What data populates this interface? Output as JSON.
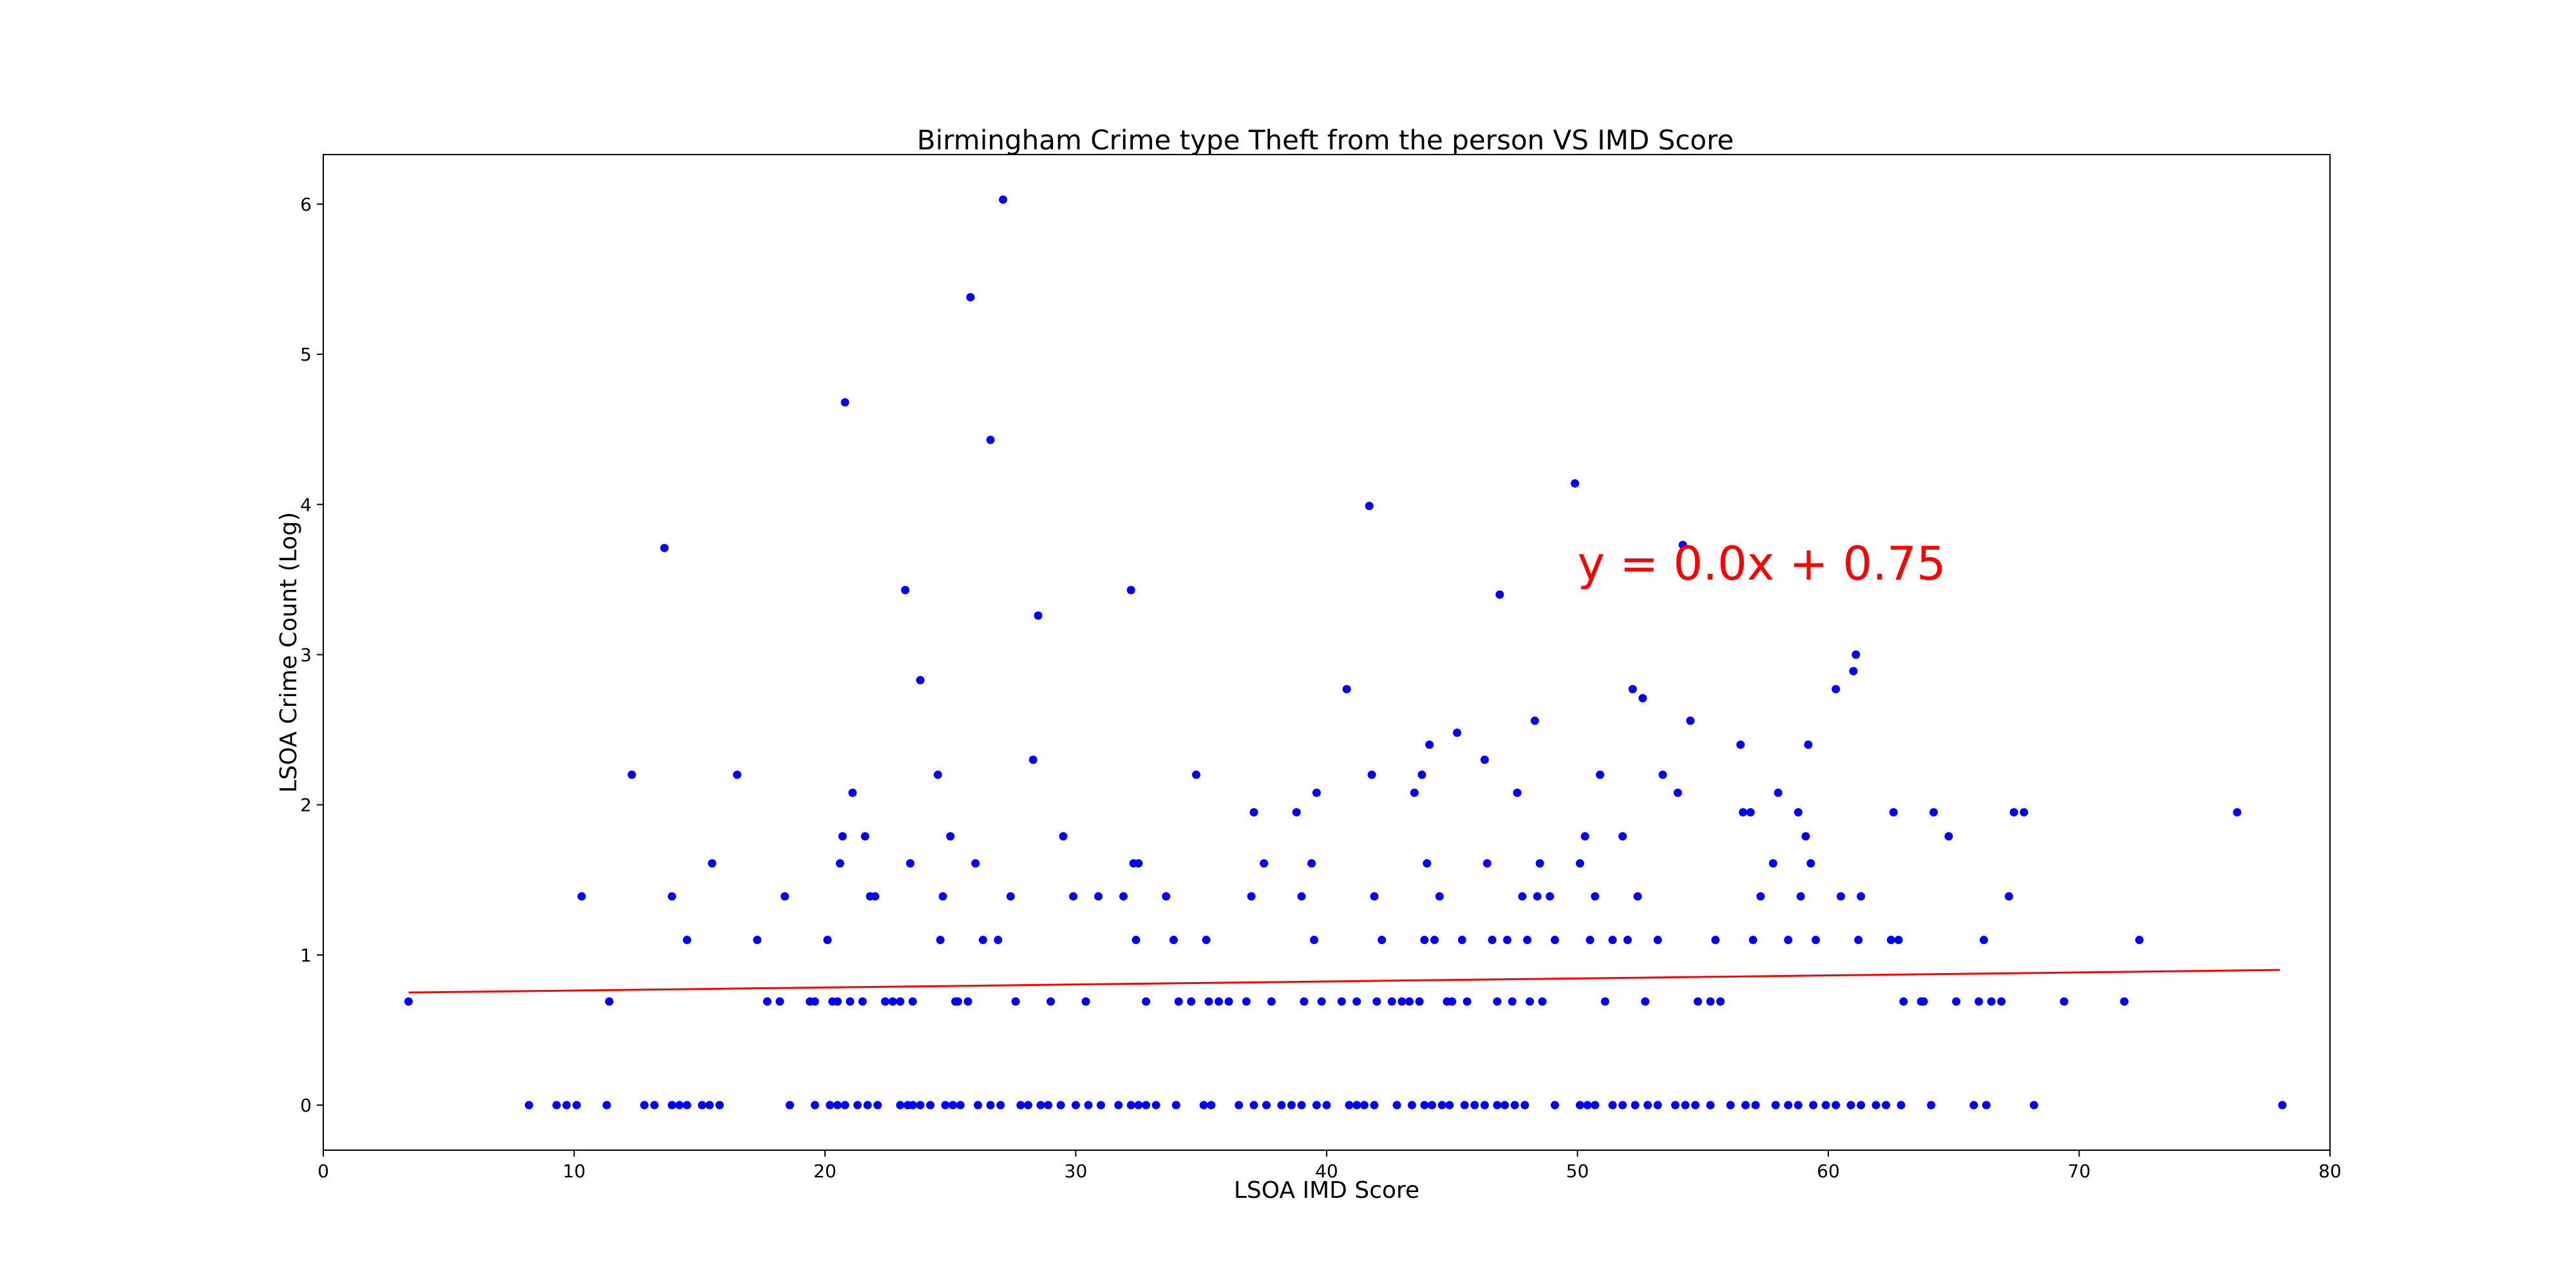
{
  "chart_data": {
    "type": "scatter",
    "title": "Birmingham Crime type Theft from the person VS IMD Score",
    "xlabel": "LSOA IMD Score",
    "ylabel": "LSOA Crime Count (Log)",
    "xlim": [
      0,
      80
    ],
    "ylim": [
      -0.3,
      6.33
    ],
    "xticks": [
      0,
      10,
      20,
      30,
      40,
      50,
      60,
      70,
      80
    ],
    "yticks": [
      0,
      1,
      2,
      3,
      4,
      5,
      6
    ],
    "grid": false,
    "legend": "none",
    "point_color": "#0000ff",
    "line_color": "#ff0000",
    "annotation": {
      "text": "y = 0.0x + 0.75",
      "x": 50,
      "y": 3.5,
      "color": "#ff0000"
    },
    "trendline": {
      "x": [
        3.4,
        78
      ],
      "y": [
        0.75,
        0.9
      ]
    },
    "points": [
      [
        3.4,
        0.69
      ],
      [
        10.3,
        1.39
      ],
      [
        11.4,
        0.69
      ],
      [
        12.3,
        2.2
      ],
      [
        13.6,
        3.71
      ],
      [
        13.9,
        1.39
      ],
      [
        14.5,
        1.1
      ],
      [
        15.5,
        1.61
      ],
      [
        16.5,
        2.2
      ],
      [
        17.3,
        1.1
      ],
      [
        17.7,
        0.69
      ],
      [
        18.2,
        0.69
      ],
      [
        18.4,
        1.39
      ],
      [
        19.4,
        0.69
      ],
      [
        19.6,
        0.69
      ],
      [
        20.1,
        1.1
      ],
      [
        20.3,
        0.69
      ],
      [
        20.5,
        0.69
      ],
      [
        20.6,
        1.61
      ],
      [
        20.7,
        1.79
      ],
      [
        20.8,
        4.68
      ],
      [
        21.0,
        0.69
      ],
      [
        21.1,
        2.08
      ],
      [
        21.5,
        0.69
      ],
      [
        21.6,
        1.79
      ],
      [
        21.8,
        1.39
      ],
      [
        22.0,
        1.39
      ],
      [
        22.4,
        0.69
      ],
      [
        22.7,
        0.69
      ],
      [
        23.0,
        0.69
      ],
      [
        23.2,
        3.43
      ],
      [
        23.4,
        1.61
      ],
      [
        23.5,
        0.69
      ],
      [
        23.8,
        2.83
      ],
      [
        24.5,
        2.2
      ],
      [
        24.6,
        1.1
      ],
      [
        24.7,
        1.39
      ],
      [
        25.0,
        1.79
      ],
      [
        25.2,
        0.69
      ],
      [
        25.3,
        0.69
      ],
      [
        25.7,
        0.69
      ],
      [
        25.8,
        5.38
      ],
      [
        26.0,
        1.61
      ],
      [
        26.3,
        1.1
      ],
      [
        26.6,
        4.43
      ],
      [
        26.9,
        1.1
      ],
      [
        27.1,
        6.03
      ],
      [
        27.4,
        1.39
      ],
      [
        27.6,
        0.69
      ],
      [
        28.3,
        2.3
      ],
      [
        28.5,
        3.26
      ],
      [
        29.0,
        0.69
      ],
      [
        29.5,
        1.79
      ],
      [
        29.9,
        1.39
      ],
      [
        30.4,
        0.69
      ],
      [
        30.9,
        1.39
      ],
      [
        31.9,
        1.39
      ],
      [
        32.2,
        3.43
      ],
      [
        32.3,
        1.61
      ],
      [
        32.4,
        1.1
      ],
      [
        32.5,
        1.61
      ],
      [
        32.8,
        0.69
      ],
      [
        33.6,
        1.39
      ],
      [
        33.9,
        1.1
      ],
      [
        34.1,
        0.69
      ],
      [
        34.6,
        0.69
      ],
      [
        34.8,
        2.2
      ],
      [
        35.2,
        1.1
      ],
      [
        35.3,
        0.69
      ],
      [
        35.7,
        0.69
      ],
      [
        36.1,
        0.69
      ],
      [
        36.8,
        0.69
      ],
      [
        37.0,
        1.39
      ],
      [
        37.1,
        1.95
      ],
      [
        37.5,
        1.61
      ],
      [
        37.8,
        0.69
      ],
      [
        38.8,
        1.95
      ],
      [
        39.0,
        1.39
      ],
      [
        39.1,
        0.69
      ],
      [
        39.4,
        1.61
      ],
      [
        39.5,
        1.1
      ],
      [
        39.6,
        2.08
      ],
      [
        39.8,
        0.69
      ],
      [
        40.6,
        0.69
      ],
      [
        40.8,
        2.77
      ],
      [
        41.2,
        0.69
      ],
      [
        41.7,
        3.99
      ],
      [
        41.8,
        2.2
      ],
      [
        41.9,
        1.39
      ],
      [
        42.0,
        0.69
      ],
      [
        42.2,
        1.1
      ],
      [
        42.6,
        0.69
      ],
      [
        43.0,
        0.69
      ],
      [
        43.3,
        0.69
      ],
      [
        43.5,
        2.08
      ],
      [
        43.7,
        0.69
      ],
      [
        43.8,
        2.2
      ],
      [
        43.9,
        1.1
      ],
      [
        44.0,
        1.61
      ],
      [
        44.1,
        2.4
      ],
      [
        44.3,
        1.1
      ],
      [
        44.5,
        1.39
      ],
      [
        44.8,
        0.69
      ],
      [
        45.0,
        0.69
      ],
      [
        45.2,
        2.48
      ],
      [
        45.4,
        1.1
      ],
      [
        45.6,
        0.69
      ],
      [
        46.3,
        2.3
      ],
      [
        46.4,
        1.61
      ],
      [
        46.6,
        1.1
      ],
      [
        46.8,
        0.69
      ],
      [
        46.9,
        3.4
      ],
      [
        47.2,
        1.1
      ],
      [
        47.4,
        0.69
      ],
      [
        47.6,
        2.08
      ],
      [
        47.8,
        1.39
      ],
      [
        48.0,
        1.1
      ],
      [
        48.1,
        0.69
      ],
      [
        48.3,
        2.56
      ],
      [
        48.4,
        1.39
      ],
      [
        48.5,
        1.61
      ],
      [
        48.6,
        0.69
      ],
      [
        48.9,
        1.39
      ],
      [
        49.1,
        1.1
      ],
      [
        49.9,
        4.14
      ],
      [
        50.1,
        1.61
      ],
      [
        50.3,
        1.79
      ],
      [
        50.5,
        1.1
      ],
      [
        50.7,
        1.39
      ],
      [
        50.9,
        2.2
      ],
      [
        51.1,
        0.69
      ],
      [
        51.4,
        1.1
      ],
      [
        51.8,
        1.79
      ],
      [
        52.0,
        1.1
      ],
      [
        52.2,
        2.77
      ],
      [
        52.4,
        1.39
      ],
      [
        52.6,
        2.71
      ],
      [
        52.7,
        0.69
      ],
      [
        53.2,
        1.1
      ],
      [
        53.4,
        2.2
      ],
      [
        54.0,
        2.08
      ],
      [
        54.2,
        3.73
      ],
      [
        54.5,
        2.56
      ],
      [
        54.8,
        0.69
      ],
      [
        55.3,
        0.69
      ],
      [
        55.5,
        1.1
      ],
      [
        55.7,
        0.69
      ],
      [
        56.5,
        2.4
      ],
      [
        56.6,
        1.95
      ],
      [
        56.9,
        1.95
      ],
      [
        57.0,
        1.1
      ],
      [
        57.3,
        1.39
      ],
      [
        57.8,
        1.61
      ],
      [
        58.0,
        2.08
      ],
      [
        58.4,
        1.1
      ],
      [
        58.8,
        1.95
      ],
      [
        58.9,
        1.39
      ],
      [
        59.1,
        1.79
      ],
      [
        59.3,
        1.61
      ],
      [
        59.5,
        1.1
      ],
      [
        59.2,
        2.4
      ],
      [
        60.3,
        2.77
      ],
      [
        60.5,
        1.39
      ],
      [
        61.0,
        2.89
      ],
      [
        61.1,
        3.0
      ],
      [
        61.2,
        1.1
      ],
      [
        61.3,
        1.39
      ],
      [
        62.5,
        1.1
      ],
      [
        62.8,
        1.1
      ],
      [
        62.6,
        1.95
      ],
      [
        63.7,
        0.69
      ],
      [
        63.8,
        0.69
      ],
      [
        64.2,
        1.95
      ],
      [
        64.8,
        1.79
      ],
      [
        65.1,
        0.69
      ],
      [
        66.2,
        1.1
      ],
      [
        66.5,
        0.69
      ],
      [
        66.9,
        0.69
      ],
      [
        67.2,
        1.39
      ],
      [
        67.4,
        1.95
      ],
      [
        67.8,
        1.95
      ],
      [
        69.4,
        0.69
      ],
      [
        71.8,
        0.69
      ],
      [
        72.4,
        1.1
      ],
      [
        76.3,
        1.95
      ],
      [
        66.0,
        0.69
      ],
      [
        63.0,
        0.69
      ],
      [
        8.2,
        0
      ],
      [
        9.3,
        0
      ],
      [
        9.7,
        0
      ],
      [
        10.1,
        0
      ],
      [
        11.3,
        0
      ],
      [
        12.8,
        0
      ],
      [
        13.2,
        0
      ],
      [
        13.9,
        0
      ],
      [
        14.2,
        0
      ],
      [
        14.5,
        0
      ],
      [
        15.1,
        0
      ],
      [
        15.4,
        0
      ],
      [
        15.8,
        0
      ],
      [
        18.6,
        0
      ],
      [
        19.6,
        0
      ],
      [
        20.2,
        0
      ],
      [
        20.5,
        0
      ],
      [
        20.8,
        0
      ],
      [
        21.3,
        0
      ],
      [
        21.7,
        0
      ],
      [
        22.1,
        0
      ],
      [
        23.0,
        0
      ],
      [
        23.3,
        0
      ],
      [
        23.5,
        0
      ],
      [
        23.8,
        0
      ],
      [
        24.2,
        0
      ],
      [
        24.8,
        0
      ],
      [
        25.1,
        0
      ],
      [
        25.4,
        0
      ],
      [
        26.1,
        0
      ],
      [
        26.6,
        0
      ],
      [
        27.0,
        0
      ],
      [
        27.8,
        0
      ],
      [
        28.1,
        0
      ],
      [
        28.6,
        0
      ],
      [
        28.9,
        0
      ],
      [
        29.4,
        0
      ],
      [
        30.0,
        0
      ],
      [
        30.5,
        0
      ],
      [
        31.0,
        0
      ],
      [
        31.7,
        0
      ],
      [
        32.2,
        0
      ],
      [
        32.5,
        0
      ],
      [
        32.8,
        0
      ],
      [
        33.2,
        0
      ],
      [
        34.0,
        0
      ],
      [
        35.1,
        0
      ],
      [
        35.4,
        0
      ],
      [
        36.5,
        0
      ],
      [
        37.1,
        0
      ],
      [
        37.6,
        0
      ],
      [
        38.2,
        0
      ],
      [
        38.6,
        0
      ],
      [
        39.0,
        0
      ],
      [
        39.6,
        0
      ],
      [
        40.0,
        0
      ],
      [
        40.9,
        0
      ],
      [
        41.2,
        0
      ],
      [
        41.5,
        0
      ],
      [
        41.9,
        0
      ],
      [
        42.8,
        0
      ],
      [
        43.4,
        0
      ],
      [
        43.9,
        0
      ],
      [
        44.2,
        0
      ],
      [
        44.6,
        0
      ],
      [
        44.9,
        0
      ],
      [
        45.5,
        0
      ],
      [
        45.9,
        0
      ],
      [
        46.3,
        0
      ],
      [
        46.8,
        0
      ],
      [
        47.1,
        0
      ],
      [
        47.5,
        0
      ],
      [
        47.9,
        0
      ],
      [
        49.1,
        0
      ],
      [
        50.1,
        0
      ],
      [
        50.4,
        0
      ],
      [
        50.7,
        0
      ],
      [
        51.4,
        0
      ],
      [
        51.8,
        0
      ],
      [
        52.3,
        0
      ],
      [
        52.8,
        0
      ],
      [
        53.2,
        0
      ],
      [
        53.9,
        0
      ],
      [
        54.3,
        0
      ],
      [
        54.7,
        0
      ],
      [
        55.3,
        0
      ],
      [
        56.1,
        0
      ],
      [
        56.7,
        0
      ],
      [
        57.1,
        0
      ],
      [
        57.9,
        0
      ],
      [
        58.4,
        0
      ],
      [
        58.8,
        0
      ],
      [
        59.4,
        0
      ],
      [
        59.9,
        0
      ],
      [
        60.3,
        0
      ],
      [
        60.9,
        0
      ],
      [
        61.3,
        0
      ],
      [
        61.9,
        0
      ],
      [
        62.3,
        0
      ],
      [
        62.9,
        0
      ],
      [
        64.1,
        0
      ],
      [
        65.8,
        0
      ],
      [
        66.3,
        0
      ],
      [
        68.2,
        0
      ],
      [
        78.1,
        0
      ]
    ]
  }
}
